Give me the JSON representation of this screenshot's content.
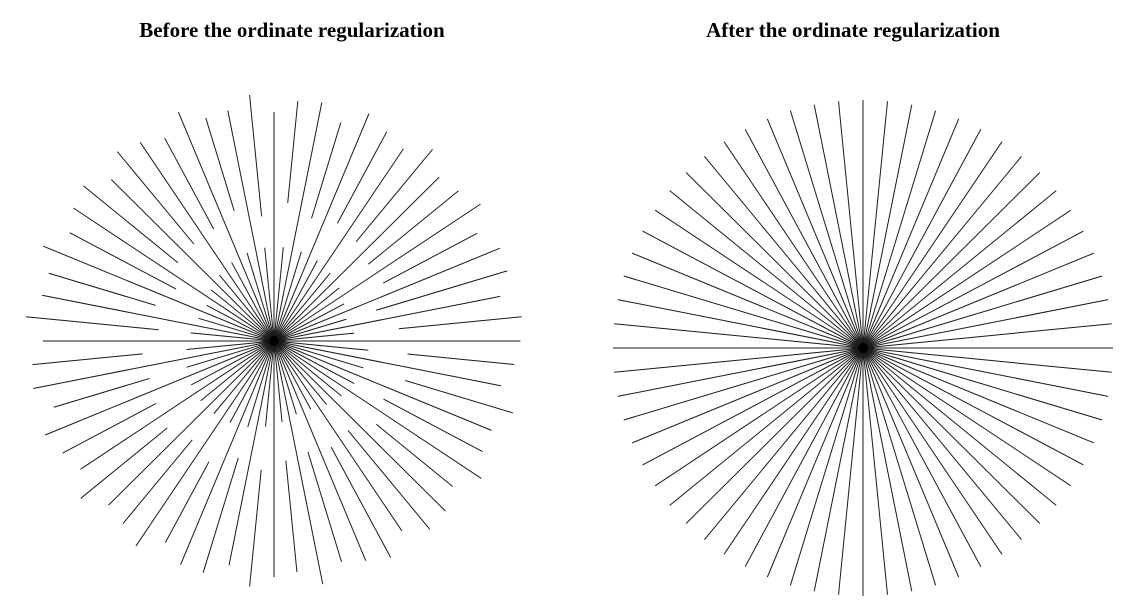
{
  "panels": [
    {
      "id": "before",
      "title": "Before the ordinate regularization",
      "ray_count": 64
    },
    {
      "id": "after",
      "title": "After the ordinate regularization",
      "ray_count": 64
    }
  ],
  "colors": {
    "background": "#ffffff",
    "lines": "#1a1a1a"
  }
}
